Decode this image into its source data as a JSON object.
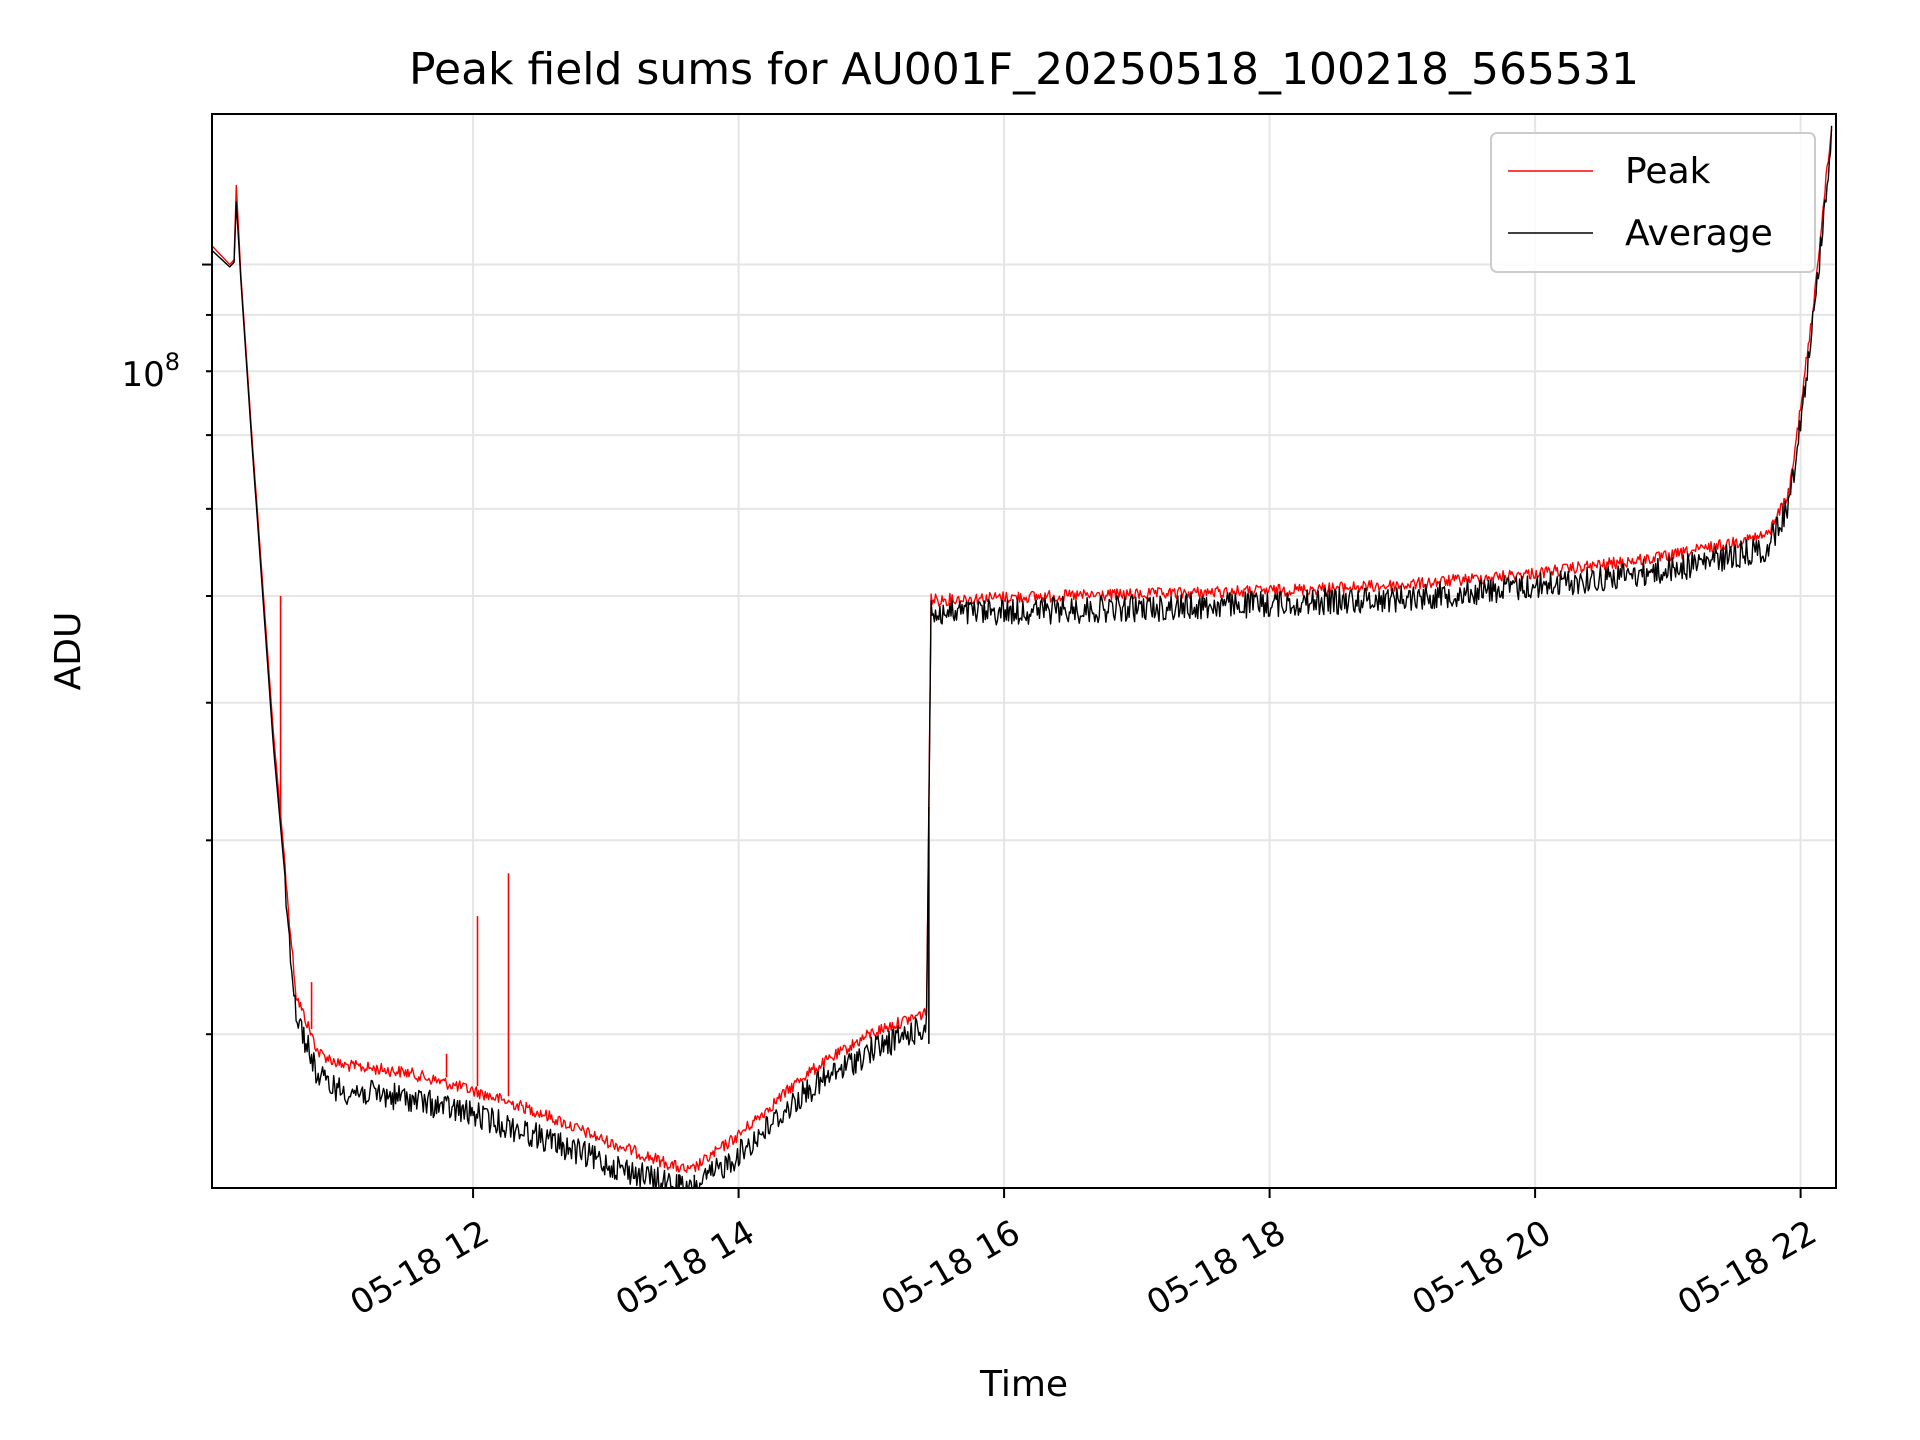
{
  "chart_data": {
    "type": "line",
    "title": "Peak field sums for AU001F_20250518_100218_565531",
    "xlabel": "Time",
    "ylabel": "ADU",
    "y_scale": "log",
    "ylim": [
      14500000,
      137000000
    ],
    "xlim": [
      "05-18 10:02",
      "05-18 22:16"
    ],
    "x_ticks": [
      "05-18 12",
      "05-18 14",
      "05-18 16",
      "05-18 18",
      "05-18 20",
      "05-18 22"
    ],
    "y_tick_label": "10^8",
    "y_tick_label_base": "10",
    "y_tick_label_exp": "8",
    "grid": true,
    "legend_position": "top-right",
    "series": [
      {
        "name": "Peak",
        "color": "#ff0000",
        "points": [
          [
            "05-18 10:02",
            104000000
          ],
          [
            "05-18 10:10",
            100000000
          ],
          [
            "05-18 10:12",
            101000000
          ],
          [
            "05-18 10:13",
            118000000
          ],
          [
            "05-18 10:15",
            98000000
          ],
          [
            "05-18 10:20",
            70000000
          ],
          [
            "05-18 10:30",
            37000000
          ],
          [
            "05-18 10:40",
            22000000
          ],
          [
            "05-18 10:50",
            19500000
          ],
          [
            "05-18 11:00",
            19000000
          ],
          [
            "05-18 11:30",
            18700000
          ],
          [
            "05-18 12:00",
            18000000
          ],
          [
            "05-18 12:30",
            17200000
          ],
          [
            "05-18 13:00",
            16200000
          ],
          [
            "05-18 13:30",
            15400000
          ],
          [
            "05-18 13:38",
            15200000
          ],
          [
            "05-18 14:00",
            16400000
          ],
          [
            "05-18 14:30",
            18600000
          ],
          [
            "05-18 15:00",
            20300000
          ],
          [
            "05-18 15:25",
            21200000
          ],
          [
            "05-18 15:27",
            50200000
          ],
          [
            "05-18 16:00",
            50500000
          ],
          [
            "05-18 17:00",
            50800000
          ],
          [
            "05-18 18:00",
            51200000
          ],
          [
            "05-18 19:00",
            51800000
          ],
          [
            "05-18 20:00",
            53100000
          ],
          [
            "05-18 21:00",
            55000000
          ],
          [
            "05-18 21:45",
            57500000
          ],
          [
            "05-18 21:55",
            63000000
          ],
          [
            "05-18 22:05",
            90000000
          ],
          [
            "05-18 22:14",
            135000000
          ]
        ],
        "spikes": [
          [
            "05-18 10:33",
            50000000
          ],
          [
            "05-18 10:47",
            22300000
          ],
          [
            "05-18 11:48",
            19200000
          ],
          [
            "05-18 12:02",
            25600000
          ],
          [
            "05-18 12:16",
            28000000
          ]
        ]
      },
      {
        "name": "Average",
        "color": "#000000",
        "points": [
          [
            "05-18 10:02",
            103000000
          ],
          [
            "05-18 10:10",
            99500000
          ],
          [
            "05-18 10:12",
            100500000
          ],
          [
            "05-18 10:13",
            114000000
          ],
          [
            "05-18 10:15",
            97000000
          ],
          [
            "05-18 10:20",
            69000000
          ],
          [
            "05-18 10:30",
            36000000
          ],
          [
            "05-18 10:40",
            21500000
          ],
          [
            "05-18 10:50",
            18800000
          ],
          [
            "05-18 11:00",
            18300000
          ],
          [
            "05-18 11:30",
            18000000
          ],
          [
            "05-18 12:00",
            17400000
          ],
          [
            "05-18 12:30",
            16600000
          ],
          [
            "05-18 13:00",
            15700000
          ],
          [
            "05-18 13:30",
            15000000
          ],
          [
            "05-18 13:38",
            14800000
          ],
          [
            "05-18 14:00",
            16000000
          ],
          [
            "05-18 14:30",
            18200000
          ],
          [
            "05-18 15:00",
            19900000
          ],
          [
            "05-18 15:25",
            20900000
          ],
          [
            "05-18 15:27",
            49500000
          ],
          [
            "05-18 16:00",
            49800000
          ],
          [
            "05-18 17:00",
            50100000
          ],
          [
            "05-18 18:00",
            50600000
          ],
          [
            "05-18 19:00",
            51200000
          ],
          [
            "05-18 20:00",
            52500000
          ],
          [
            "05-18 21:00",
            54300000
          ],
          [
            "05-18 21:45",
            56800000
          ],
          [
            "05-18 21:55",
            62500000
          ],
          [
            "05-18 22:05",
            89000000
          ],
          [
            "05-18 22:14",
            134000000
          ]
        ],
        "dips": [
          [
            "05-18 15:26",
            19600000
          ],
          [
            "05-18 13:33",
            14500000
          ],
          [
            "05-18 13:40",
            14500000
          ]
        ]
      }
    ]
  }
}
